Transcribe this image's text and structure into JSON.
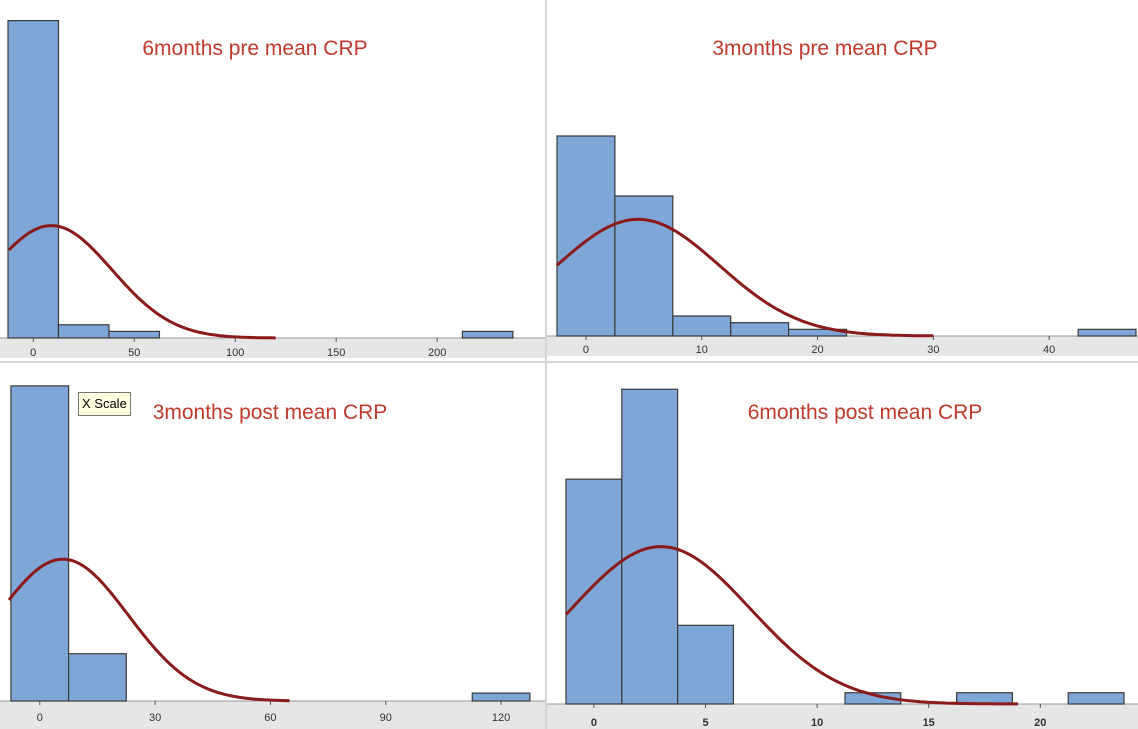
{
  "tooltip": {
    "text": "X Scale"
  },
  "colors": {
    "bar_fill": "#7ea6d6",
    "bar_stroke": "#3a3a3a",
    "curve": "#8b1a1a",
    "title": "#c0392b",
    "axis_band": "#e6e6e6"
  },
  "chart_data": [
    {
      "type": "bar",
      "title": "6months pre mean CRP",
      "xlim": [
        -12,
        244
      ],
      "ylim": [
        0,
        49
      ],
      "ticks": [
        0,
        50,
        100,
        150,
        200
      ],
      "bins": [
        {
          "x0": -12.5,
          "x1": 12.5,
          "count": 48
        },
        {
          "x0": 12.5,
          "x1": 37.5,
          "count": 2
        },
        {
          "x0": 37.5,
          "x1": 62.5,
          "count": 1
        },
        {
          "x0": 212.5,
          "x1": 237.5,
          "count": 1
        }
      ],
      "curve": {
        "mean": 9,
        "sd": 30,
        "peak": 17
      }
    },
    {
      "type": "bar",
      "title": "3months pre mean CRP",
      "xlim": [
        -2.5,
        47.5
      ],
      "ylim": [
        0,
        36
      ],
      "ticks": [
        0,
        10,
        20,
        30,
        40
      ],
      "bins": [
        {
          "x0": -2.5,
          "x1": 2.5,
          "count": 30
        },
        {
          "x0": 2.5,
          "x1": 7.5,
          "count": 21
        },
        {
          "x0": 7.5,
          "x1": 12.5,
          "count": 3
        },
        {
          "x0": 12.5,
          "x1": 17.5,
          "count": 2
        },
        {
          "x0": 17.5,
          "x1": 22.5,
          "count": 1
        },
        {
          "x0": 42.5,
          "x1": 47.5,
          "count": 1
        }
      ],
      "curve": {
        "mean": 4.5,
        "sd": 7,
        "peak": 17.5
      }
    },
    {
      "type": "bar",
      "title": "3months post mean CRP",
      "xlim": [
        -8,
        127
      ],
      "ylim": [
        0,
        41
      ],
      "ticks": [
        0,
        30,
        60,
        90,
        120
      ],
      "bins": [
        {
          "x0": -7.5,
          "x1": 7.5,
          "count": 40
        },
        {
          "x0": 7.5,
          "x1": 22.5,
          "count": 6
        },
        {
          "x0": 112.5,
          "x1": 127.5,
          "count": 1
        }
      ],
      "curve": {
        "mean": 6,
        "sd": 17,
        "peak": 18
      }
    },
    {
      "type": "bar",
      "title": "6months post mean CRP",
      "xlim": [
        -1.25,
        23.75
      ],
      "ylim": [
        0,
        29
      ],
      "ticks": [
        0,
        5,
        10,
        15,
        20
      ],
      "bins": [
        {
          "x0": -1.25,
          "x1": 1.25,
          "count": 20
        },
        {
          "x0": 1.25,
          "x1": 3.75,
          "count": 28
        },
        {
          "x0": 3.75,
          "x1": 6.25,
          "count": 7
        },
        {
          "x0": 11.25,
          "x1": 13.75,
          "count": 1
        },
        {
          "x0": 16.25,
          "x1": 18.75,
          "count": 1
        },
        {
          "x0": 21.25,
          "x1": 23.75,
          "count": 1
        }
      ],
      "curve": {
        "mean": 3,
        "sd": 4,
        "peak": 14
      }
    }
  ]
}
